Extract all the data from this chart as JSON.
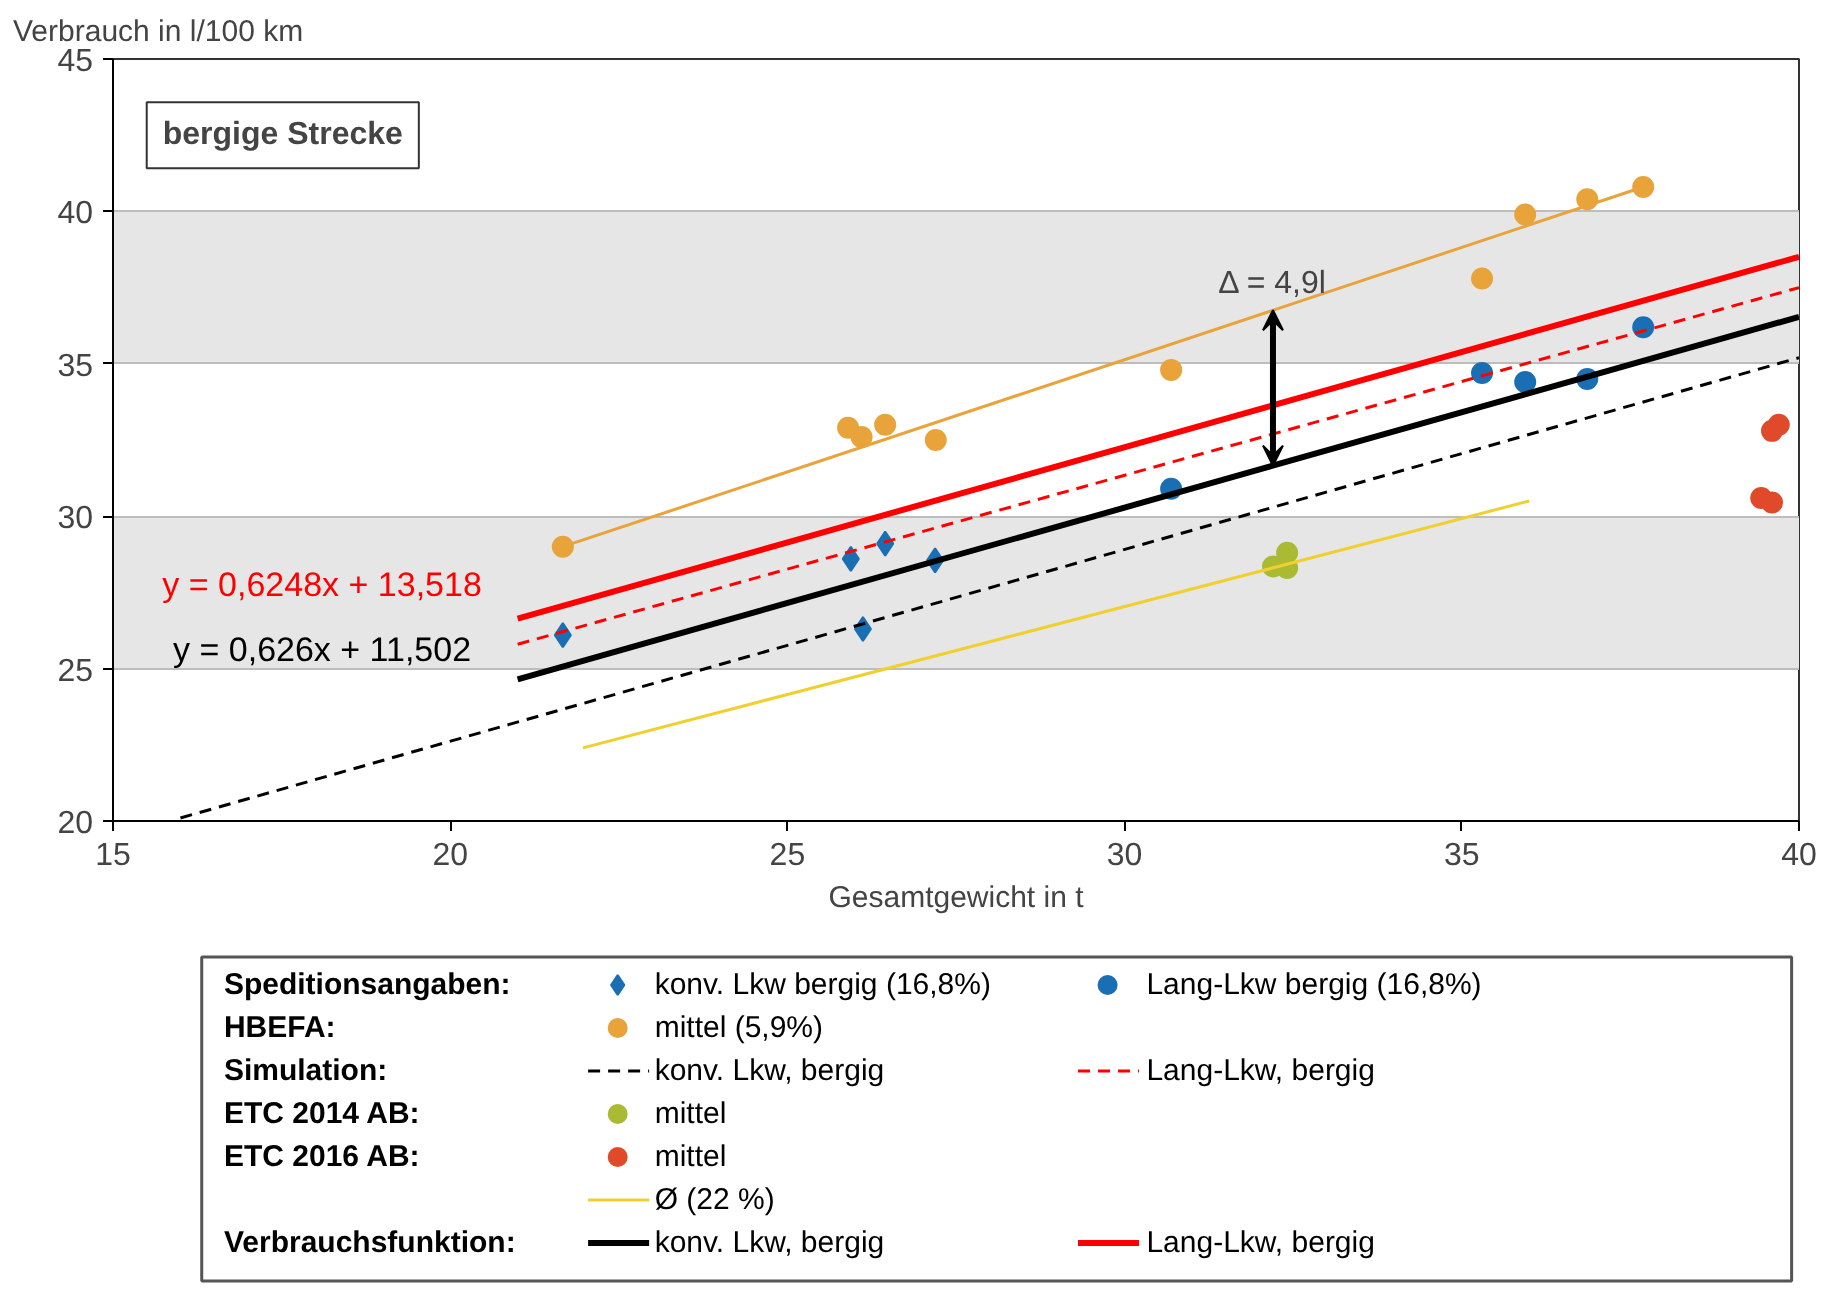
{
  "chart_data": {
    "type": "scatter",
    "ylabel": "Verbrauch in l/100 km",
    "xlabel": "Gesamtgewicht in t",
    "xlim": [
      15,
      40
    ],
    "xticks": [
      15,
      20,
      25,
      30,
      35,
      40
    ],
    "ylim": [
      20,
      45
    ],
    "yticks": [
      20,
      25,
      30,
      35,
      40,
      45
    ],
    "grid": "y",
    "legend": "bottom",
    "annotations": [
      "Speditionsangaben:",
      "HBEFA:",
      "Simulation:",
      "ETC 2014 AB:",
      "ETC 2016 AB:",
      "Verbrauchsfunktion:",
      "bergige Strecke",
      "Δ = 4,9l",
      "y = 0,6248x + 13,518",
      "y = 0,626x + 11,502"
    ],
    "series": [
      {
        "name": "konv. Lkw bergig (16,8%)",
        "marker": "diamond",
        "color": "#1a6fb4",
        "x": [
          21.67,
          25.94,
          26.45,
          27.19,
          26.12
        ],
        "values": [
          26.1,
          28.6,
          29.1,
          28.55,
          26.3
        ]
      },
      {
        "name": "Lang-Lkw bergig (16,8%)",
        "marker": "circle",
        "color": "#1a6fb4",
        "x": [
          30.69,
          35.3,
          35.94,
          36.86,
          37.69
        ],
        "values": [
          30.9,
          34.7,
          34.4,
          34.5,
          36.2
        ]
      },
      {
        "name": "mittel (5,9%)",
        "marker": "circle",
        "color": "#e8a33a",
        "x": [
          21.67,
          25.9,
          26.1,
          26.45,
          27.2,
          30.69,
          35.3,
          35.94,
          36.86,
          37.69
        ],
        "values": [
          29.0,
          32.9,
          32.6,
          33.0,
          32.5,
          34.8,
          37.8,
          39.9,
          40.4,
          40.8
        ]
      },
      {
        "type": "line",
        "color": "#e8a33a",
        "x": [
          21.67,
          37.69
        ],
        "values": [
          29.0,
          40.8
        ]
      },
      {
        "name": "konv. Lkw, bergig",
        "type": "line",
        "line_style": "dashed",
        "color": "#000000",
        "x": [
          16,
          40
        ],
        "values": [
          20.1,
          35.2
        ]
      },
      {
        "name": "Lang-Lkw, bergig",
        "type": "line",
        "line_style": "dashed",
        "color": "#ff0000",
        "x": [
          21,
          40
        ],
        "values": [
          25.8,
          37.5
        ]
      },
      {
        "name": "mittel",
        "marker": "circle",
        "color": "#aabb33",
        "x": [
          32.2,
          32.41,
          32.41
        ],
        "values": [
          28.35,
          28.8,
          28.3
        ]
      },
      {
        "name": "mittel",
        "marker": "circle",
        "color": "#e04a2a",
        "x": [
          39.6,
          39.7,
          39.44,
          39.6
        ],
        "values": [
          32.8,
          33.0,
          30.6,
          30.45
        ]
      },
      {
        "name": "Ø (22 %)",
        "type": "line",
        "color": "#f0d030",
        "x": [
          21.97,
          36.0
        ],
        "values": [
          22.4,
          30.5
        ]
      },
      {
        "name": "konv. Lkw, bergig",
        "type": "line",
        "color": "#000000",
        "x": [
          21,
          40
        ],
        "values": [
          24.65,
          36.54
        ]
      },
      {
        "name": "Lang-Lkw, bergig",
        "type": "line",
        "color": "#ff0000",
        "x": [
          21,
          40
        ],
        "values": [
          26.64,
          38.51
        ]
      }
    ]
  }
}
